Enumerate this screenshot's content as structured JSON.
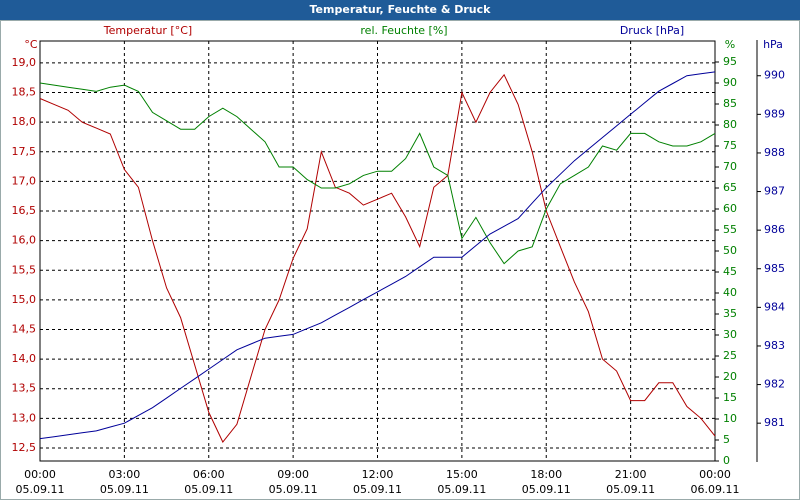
{
  "chart_data": {
    "type": "line",
    "title": "Temperatur, Feuchte & Druck",
    "ylabel": "°C",
    "y2label": "%",
    "y3label": "hPa",
    "x": [
      0,
      0.5,
      1,
      1.5,
      2,
      2.5,
      3,
      3.5,
      4,
      4.5,
      5,
      5.5,
      6,
      6.5,
      7,
      7.5,
      8,
      8.5,
      9,
      9.5,
      10,
      10.5,
      11,
      11.5,
      12,
      12.5,
      13,
      13.5,
      14,
      14.5,
      15,
      15.5,
      16,
      16.5,
      17,
      17.5,
      18,
      18.5,
      19,
      19.5,
      20,
      20.5,
      21,
      21.5,
      22,
      22.5,
      23,
      23.5,
      24
    ],
    "xlim": [
      0,
      24
    ],
    "xticks": [
      {
        "value": 0,
        "label": "00:00",
        "date": "05.09.11"
      },
      {
        "value": 3,
        "label": "03:00",
        "date": "05.09.11"
      },
      {
        "value": 6,
        "label": "06:00",
        "date": "05.09.11"
      },
      {
        "value": 9,
        "label": "09:00",
        "date": "05.09.11"
      },
      {
        "value": 12,
        "label": "12:00",
        "date": "05.09.11"
      },
      {
        "value": 15,
        "label": "15:00",
        "date": "05.09.11"
      },
      {
        "value": 18,
        "label": "18:00",
        "date": "05.09.11"
      },
      {
        "value": 21,
        "label": "21:00",
        "date": "05.09.11"
      },
      {
        "value": 24,
        "label": "00:00",
        "date": "06.09.11"
      }
    ],
    "ylim": [
      12.28,
      19.37
    ],
    "yticks": [
      {
        "value": 12.5,
        "label": "12,5"
      },
      {
        "value": 13,
        "label": "13,0"
      },
      {
        "value": 13.5,
        "label": "13,5"
      },
      {
        "value": 14,
        "label": "14,0"
      },
      {
        "value": 14.5,
        "label": "14,5"
      },
      {
        "value": 15,
        "label": "15,0"
      },
      {
        "value": 15.5,
        "label": "15,5"
      },
      {
        "value": 16,
        "label": "16,0"
      },
      {
        "value": 16.5,
        "label": "16,5"
      },
      {
        "value": 17,
        "label": "17,0"
      },
      {
        "value": 17.5,
        "label": "17,5"
      },
      {
        "value": 18,
        "label": "18,0"
      },
      {
        "value": 18.5,
        "label": "18,5"
      },
      {
        "value": 19,
        "label": "19,0"
      }
    ],
    "y2lim": [
      0,
      100
    ],
    "y2ticks": [
      0,
      5,
      10,
      15,
      20,
      25,
      30,
      35,
      40,
      45,
      50,
      55,
      60,
      65,
      70,
      75,
      80,
      85,
      90,
      95
    ],
    "y3lim": [
      980.02,
      990.9
    ],
    "y3ticks": [
      981,
      982,
      983,
      984,
      985,
      986,
      987,
      988,
      989,
      990
    ],
    "grid": true,
    "series": [
      {
        "name": "Temperatur [°C]",
        "color": "#b00000",
        "axis": "y",
        "values": [
          18.4,
          18.3,
          18.2,
          18.0,
          17.9,
          17.8,
          17.2,
          16.9,
          16.0,
          15.2,
          14.7,
          13.9,
          13.1,
          12.6,
          12.9,
          13.7,
          14.5,
          15.0,
          15.7,
          16.2,
          17.5,
          16.9,
          16.8,
          16.6,
          16.7,
          16.8,
          16.4,
          15.9,
          16.9,
          17.1,
          18.5,
          18.0,
          18.5,
          18.8,
          18.3,
          17.5,
          16.5,
          15.9,
          15.3,
          14.8,
          14.0,
          13.8,
          13.3,
          13.3,
          13.6,
          13.6,
          13.2,
          13.0,
          12.7
        ]
      },
      {
        "name": "rel. Feuchte [%]",
        "color": "#008000",
        "axis": "y2",
        "values": [
          90,
          89.5,
          89,
          88.5,
          88,
          89,
          89.5,
          88,
          83,
          81,
          79,
          79,
          82,
          84,
          82,
          79,
          76,
          70,
          70,
          67,
          65,
          65,
          66,
          68,
          69,
          69,
          72,
          78,
          70,
          68,
          53,
          58,
          52,
          47,
          50,
          51,
          60,
          66,
          68,
          70,
          75,
          74,
          78,
          78,
          76,
          75,
          75,
          76,
          78
        ]
      },
      {
        "name": "Druck [hPa]",
        "color": "#000099",
        "axis": "y3",
        "values": [
          980.6,
          980.65,
          980.7,
          980.75,
          980.8,
          980.9,
          981.0,
          981.2,
          981.4,
          981.65,
          981.9,
          982.15,
          982.4,
          982.65,
          982.9,
          983.05,
          983.2,
          983.25,
          983.3,
          983.45,
          983.6,
          983.8,
          984.0,
          984.2,
          984.4,
          984.6,
          984.8,
          985.05,
          985.3,
          985.3,
          985.3,
          985.6,
          985.9,
          986.1,
          986.3,
          986.7,
          987.1,
          987.45,
          987.8,
          988.1,
          988.4,
          988.7,
          989.0,
          989.3,
          989.6,
          989.8,
          990.0,
          990.05,
          990.1
        ]
      }
    ]
  }
}
